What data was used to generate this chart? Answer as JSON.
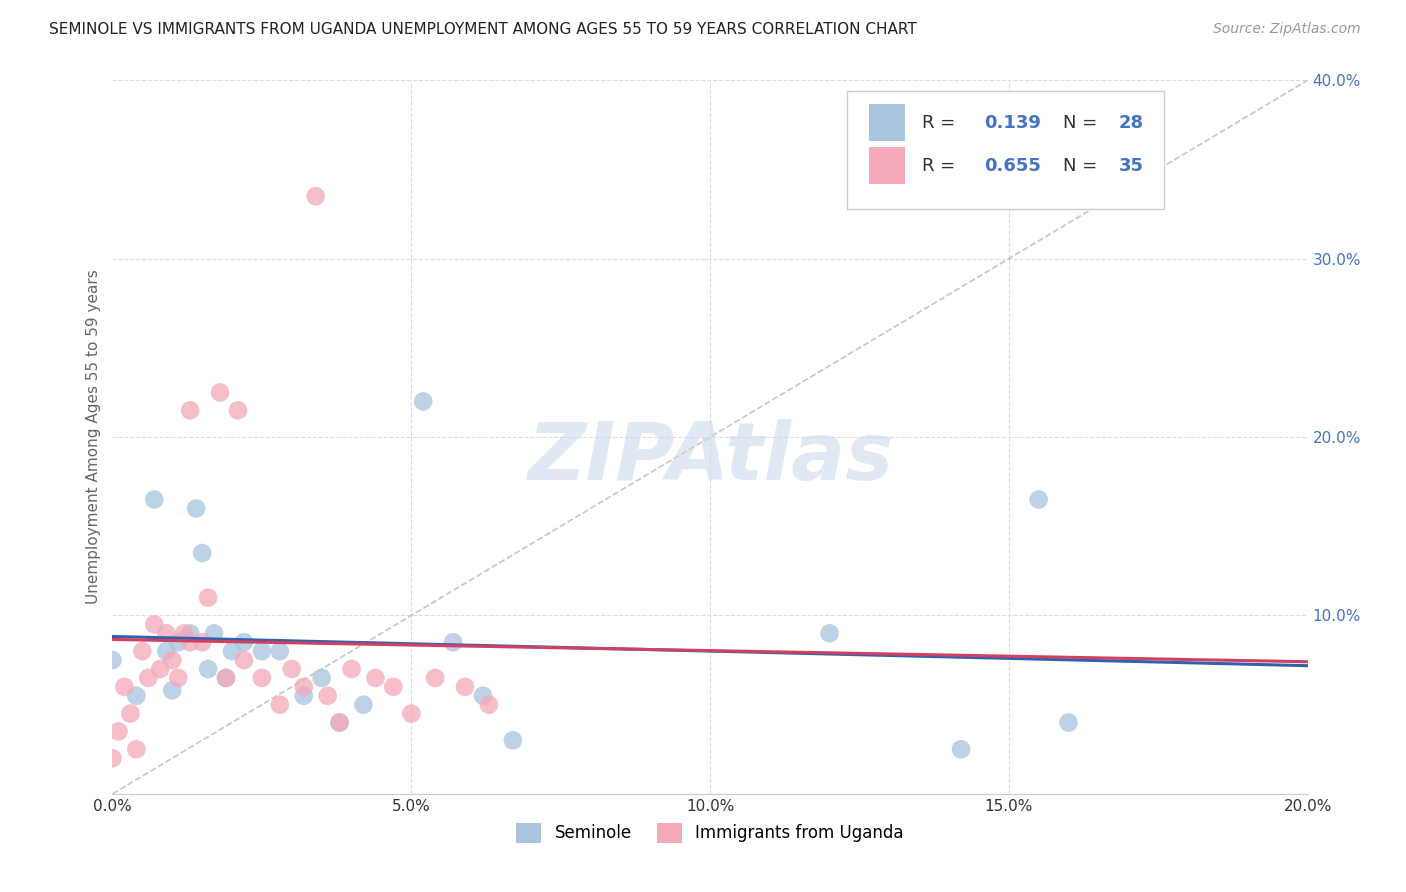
{
  "title": "SEMINOLE VS IMMIGRANTS FROM UGANDA UNEMPLOYMENT AMONG AGES 55 TO 59 YEARS CORRELATION CHART",
  "source": "Source: ZipAtlas.com",
  "ylabel": "Unemployment Among Ages 55 to 59 years",
  "xlim": [
    0.0,
    0.2
  ],
  "ylim": [
    0.0,
    0.4
  ],
  "color_seminole": "#a8c4e0",
  "color_uganda": "#f4a8b8",
  "color_line_seminole": "#3060b0",
  "color_line_uganda": "#d04060",
  "r_seminole": "0.139",
  "n_seminole": "28",
  "r_uganda": "0.655",
  "n_uganda": "35",
  "legend_seminole": "Seminole",
  "legend_uganda": "Immigrants from Uganda",
  "seminole_x": [
    0.0,
    0.004,
    0.007,
    0.009,
    0.01,
    0.011,
    0.013,
    0.014,
    0.015,
    0.016,
    0.017,
    0.019,
    0.02,
    0.022,
    0.025,
    0.028,
    0.032,
    0.035,
    0.038,
    0.042,
    0.052,
    0.057,
    0.062,
    0.067,
    0.12,
    0.142,
    0.155,
    0.16
  ],
  "seminole_y": [
    0.075,
    0.055,
    0.165,
    0.08,
    0.058,
    0.085,
    0.09,
    0.16,
    0.135,
    0.07,
    0.09,
    0.065,
    0.08,
    0.085,
    0.08,
    0.08,
    0.055,
    0.065,
    0.04,
    0.05,
    0.22,
    0.085,
    0.055,
    0.03,
    0.09,
    0.025,
    0.165,
    0.04
  ],
  "uganda_x": [
    0.0,
    0.001,
    0.002,
    0.003,
    0.004,
    0.005,
    0.006,
    0.007,
    0.008,
    0.009,
    0.01,
    0.011,
    0.012,
    0.013,
    0.013,
    0.015,
    0.016,
    0.018,
    0.019,
    0.021,
    0.022,
    0.025,
    0.028,
    0.03,
    0.032,
    0.034,
    0.036,
    0.038,
    0.04,
    0.044,
    0.047,
    0.05,
    0.054,
    0.059,
    0.063
  ],
  "uganda_y": [
    0.02,
    0.035,
    0.06,
    0.045,
    0.025,
    0.08,
    0.065,
    0.095,
    0.07,
    0.09,
    0.075,
    0.065,
    0.09,
    0.085,
    0.215,
    0.085,
    0.11,
    0.225,
    0.065,
    0.215,
    0.075,
    0.065,
    0.05,
    0.07,
    0.06,
    0.335,
    0.055,
    0.04,
    0.07,
    0.065,
    0.06,
    0.045,
    0.065,
    0.06,
    0.05
  ]
}
